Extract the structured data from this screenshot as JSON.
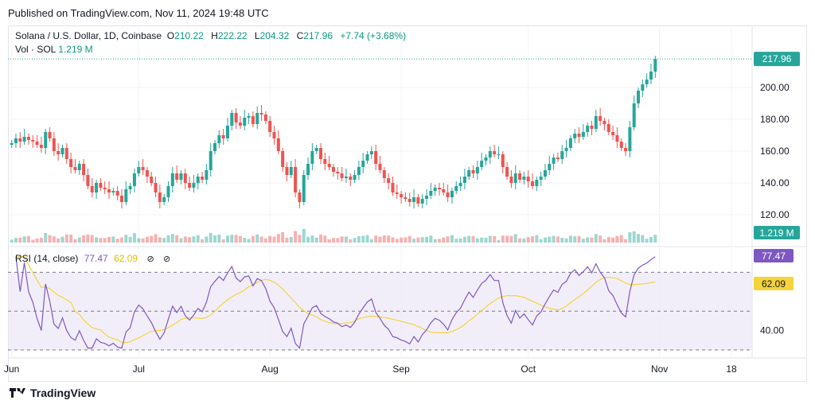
{
  "published": "Published on TradingView.com, Nov 11, 2024 19:48 UTC",
  "legend": {
    "title": "Solana / U.S. Dollar, 1D, Coinbase",
    "o_label": "O",
    "o": "210.22",
    "h_label": "H",
    "h": "222.22",
    "l_label": "L",
    "l": "204.32",
    "c_label": "C",
    "c": "217.96",
    "change": "+7.74 (+3.68%)",
    "vol_label": "Vol · SOL",
    "vol": "1.219 M"
  },
  "rsi_legend": {
    "label": "RSI (14, close)",
    "rsi": "77.47",
    "ma": "62.09",
    "icons": [
      "eye-off-icon",
      "close-icon"
    ]
  },
  "footer": {
    "brand": "TradingView"
  },
  "colors": {
    "up": "#26a69a",
    "down": "#ef5350",
    "rsi": "#7e57c2",
    "rsi_ma": "#f5d33b",
    "rsi_band": "#ede7f6"
  },
  "chart_data": [
    {
      "type": "candlestick",
      "title": "Solana / U.S. Dollar, 1D, Coinbase",
      "ylim": [
        110,
        225
      ],
      "y_ticks": [
        "120.00",
        "140.00",
        "160.00",
        "180.00",
        "200.00"
      ],
      "x_ticks": [
        {
          "label": "Jun",
          "day": 0
        },
        {
          "label": "Jul",
          "day": 30
        },
        {
          "label": "Aug",
          "day": 61
        },
        {
          "label": "Sep",
          "day": 92
        },
        {
          "label": "Oct",
          "day": 122
        },
        {
          "label": "Nov",
          "day": 153
        },
        {
          "label": "18",
          "day": 170
        }
      ],
      "x_start": "2024-05-31",
      "last_price": "217.96",
      "volume_label": "1.219 M",
      "closes": [
        165,
        168,
        166,
        169,
        167,
        166,
        164,
        162,
        172,
        168,
        160,
        158,
        162,
        155,
        150,
        148,
        152,
        145,
        138,
        134,
        140,
        137,
        136,
        134,
        135,
        132,
        128,
        136,
        138,
        146,
        150,
        148,
        144,
        140,
        134,
        128,
        131,
        138,
        146,
        142,
        146,
        140,
        137,
        140,
        144,
        142,
        148,
        160,
        165,
        170,
        168,
        176,
        184,
        178,
        176,
        181,
        182,
        177,
        184,
        183,
        179,
        172,
        168,
        160,
        150,
        145,
        150,
        134,
        128,
        145,
        152,
        160,
        162,
        155,
        152,
        150,
        147,
        146,
        143,
        144,
        142,
        145,
        150,
        154,
        158,
        160,
        152,
        148,
        143,
        140,
        134,
        133,
        131,
        130,
        128,
        131,
        127,
        130,
        132,
        135,
        137,
        136,
        134,
        131,
        135,
        138,
        140,
        144,
        148,
        146,
        150,
        154,
        156,
        160,
        158,
        158,
        150,
        144,
        140,
        146,
        142,
        144,
        141,
        138,
        142,
        144,
        148,
        152,
        156,
        155,
        160,
        162,
        168,
        171,
        169,
        172,
        176,
        174,
        182,
        179,
        177,
        172,
        170,
        166,
        162,
        160,
        175,
        190,
        198,
        202,
        205,
        210,
        217.96
      ],
      "rsi": {
        "ylim": [
          30,
          80
        ],
        "y_ticks": [
          "40.00"
        ],
        "bands": [
          70,
          50,
          30
        ],
        "last_rsi": "77.47",
        "last_ma": "62.09"
      }
    }
  ]
}
